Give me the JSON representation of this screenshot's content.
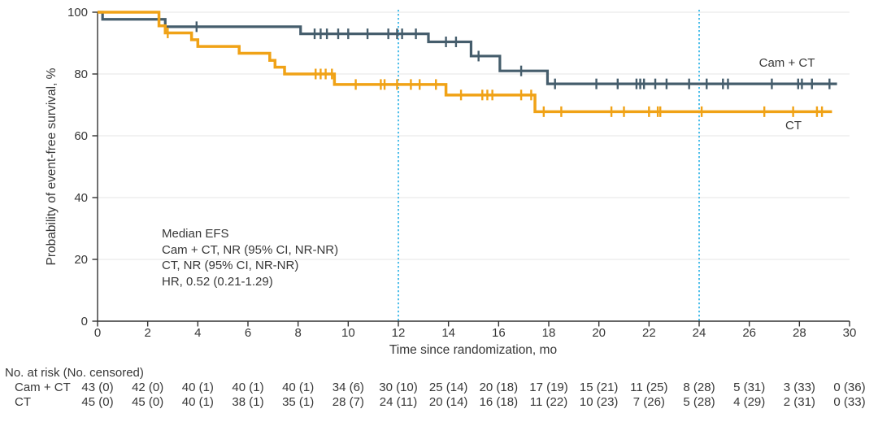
{
  "chart_data": {
    "type": "line",
    "subtype": "kaplan-meier-step",
    "title": "",
    "xlabel": "Time since randomization, mo",
    "ylabel": "Probability of event-free survival, %",
    "xlim": [
      0,
      30
    ],
    "ylim": [
      0,
      100
    ],
    "x_ticks": [
      0,
      2,
      4,
      6,
      8,
      10,
      12,
      14,
      16,
      18,
      20,
      22,
      24,
      26,
      28,
      30
    ],
    "y_ticks": [
      0,
      20,
      40,
      60,
      80,
      100
    ],
    "grid_y": [
      20,
      40,
      60,
      80,
      100
    ],
    "grid_on": true,
    "reference_lines_x": [
      12,
      24
    ],
    "legend_position": "end-of-curve",
    "series": [
      {
        "name": "Cam + CT",
        "color": "#455d6c",
        "steps": [
          [
            0,
            100
          ],
          [
            0.2,
            97.7
          ],
          [
            2.7,
            95.3
          ],
          [
            8.1,
            93.0
          ],
          [
            13.2,
            90.4
          ],
          [
            14.9,
            85.8
          ],
          [
            16.05,
            81.0
          ],
          [
            17.95,
            76.8
          ]
        ],
        "end_x": 29.5,
        "censor_times": [
          3.95,
          8.66,
          8.9,
          9.15,
          9.6,
          10.0,
          10.77,
          11.6,
          11.95,
          12.15,
          12.7,
          13.9,
          14.3,
          15.2,
          16.9,
          18.25,
          19.9,
          20.75,
          21.5,
          21.65,
          21.8,
          22.25,
          22.7,
          23.6,
          24.3,
          24.95,
          25.15,
          26.9,
          27.95,
          28.1,
          28.5,
          29.2
        ]
      },
      {
        "name": "CT",
        "color": "#f0a216",
        "steps": [
          [
            0,
            100
          ],
          [
            2.45,
            95.6
          ],
          [
            2.7,
            93.3
          ],
          [
            3.75,
            91.1
          ],
          [
            4.0,
            88.9
          ],
          [
            5.65,
            86.7
          ],
          [
            6.87,
            84.4
          ],
          [
            7.08,
            82.2
          ],
          [
            7.46,
            80.0
          ],
          [
            9.45,
            76.6
          ],
          [
            13.9,
            73.2
          ],
          [
            17.45,
            67.8
          ]
        ],
        "end_x": 29.3,
        "censor_times": [
          2.8,
          8.7,
          8.9,
          9.1,
          9.35,
          10.3,
          11.3,
          11.45,
          11.95,
          12.5,
          12.85,
          13.5,
          14.5,
          15.35,
          15.55,
          15.75,
          16.9,
          17.3,
          17.8,
          18.5,
          20.5,
          21.0,
          22.0,
          22.35,
          22.45,
          24.1,
          26.6,
          27.75,
          28.7,
          28.9
        ]
      }
    ],
    "annotation_lines": [
      "Median EFS",
      "Cam + CT, NR (95% CI, NR-NR)",
      "CT, NR (95% CI, NR-NR)",
      "HR, 0.52 (0.21-1.29)"
    ]
  },
  "risk_table": {
    "header": "No. at risk (No. censored)",
    "times": [
      0,
      2,
      4,
      6,
      8,
      10,
      12,
      14,
      16,
      18,
      20,
      22,
      24,
      26,
      28,
      30
    ],
    "rows": [
      {
        "label": "Cam + CT",
        "values": [
          "43 (0)",
          "42 (0)",
          "40 (1)",
          "40 (1)",
          "40 (1)",
          "34 (6)",
          "30 (10)",
          "25 (14)",
          "20 (18)",
          "17 (19)",
          "15 (21)",
          "11 (25)",
          "8 (28)",
          "5 (31)",
          "3 (33)",
          "0 (36)"
        ]
      },
      {
        "label": "CT",
        "values": [
          "45 (0)",
          "45 (0)",
          "40 (1)",
          "38 (1)",
          "35 (1)",
          "28 (7)",
          "24 (11)",
          "20 (14)",
          "16 (18)",
          "11 (22)",
          "10 (23)",
          "7 (26)",
          "5 (28)",
          "4 (29)",
          "2 (31)",
          "0 (33)"
        ]
      }
    ]
  },
  "colors": {
    "cam_ct": "#455d6c",
    "ct": "#f0a216",
    "reference_line": "#3cb8e8",
    "grid": "#ebebeb",
    "axis": "#333333",
    "text": "#373737",
    "background": "#ffffff"
  }
}
